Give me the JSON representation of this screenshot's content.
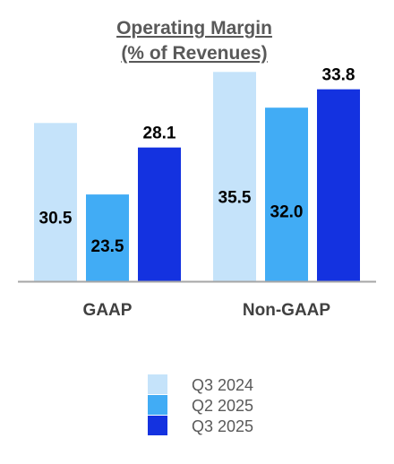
{
  "chart_data": {
    "type": "bar",
    "title": "Operating Margin",
    "subtitle": "(% of Revenues)",
    "xlabel": "",
    "ylabel": "",
    "categories": [
      "GAAP",
      "Non-GAAP"
    ],
    "series": [
      {
        "name": "Q3 2024",
        "color": "#c5e3fa",
        "values": [
          30.5,
          35.5
        ]
      },
      {
        "name": "Q2 2025",
        "color": "#41acf5",
        "values": [
          23.5,
          32.0
        ]
      },
      {
        "name": "Q3 2025",
        "color": "#1432e0",
        "values": [
          28.1,
          33.8
        ]
      }
    ],
    "ylim": [
      15,
      40
    ],
    "grid": false,
    "legend": "bottom-center"
  }
}
